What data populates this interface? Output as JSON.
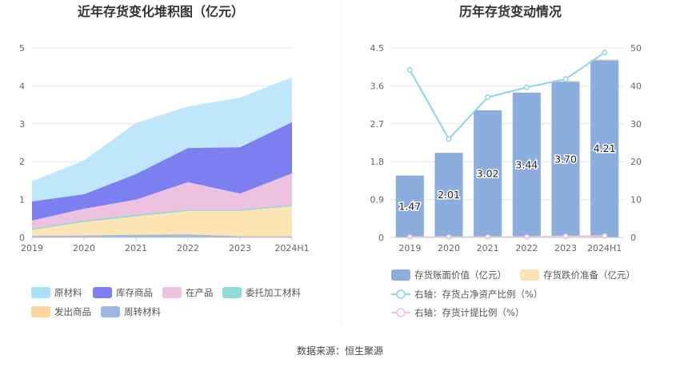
{
  "footer": {
    "source": "数据来源：恒生聚源"
  },
  "colors": {
    "原材料": "#bfe7fb",
    "库存商品": "#7b7ff0",
    "在产品": "#edc2e1",
    "委托加工材料": "#8fdada",
    "发出商品": "#fde4b4",
    "周转材料": "#9db6e4",
    "bar": "#8baede",
    "bar_top": "#fde4b4",
    "line1": "#8dd6de",
    "line2": "#f0c3dc",
    "legend_swatch_原材料": "#a8e0f9",
    "legend_swatch_发出商品": "#fcd69a"
  },
  "chart_data": [
    {
      "type": "area",
      "title": "近年存货变化堆积图（亿元）",
      "categories": [
        "2019",
        "2020",
        "2021",
        "2022",
        "2023",
        "2024H1"
      ],
      "ylim": [
        0,
        5
      ],
      "yticks": [
        0,
        1,
        2,
        3,
        4,
        5
      ],
      "stacked": true,
      "grid": true,
      "legend_position": "bottom",
      "series": [
        {
          "name": "周转材料",
          "values": [
            0.04,
            0.05,
            0.07,
            0.08,
            0.03,
            0.03
          ]
        },
        {
          "name": "发出商品",
          "values": [
            0.16,
            0.36,
            0.49,
            0.62,
            0.67,
            0.8
          ]
        },
        {
          "name": "委托加工材料",
          "values": [
            0.03,
            0.04,
            0.04,
            0.03,
            0.03,
            0.03
          ]
        },
        {
          "name": "在产品",
          "values": [
            0.22,
            0.31,
            0.4,
            0.73,
            0.43,
            0.83
          ]
        },
        {
          "name": "库存商品",
          "values": [
            0.5,
            0.38,
            0.67,
            0.9,
            1.22,
            1.35
          ]
        },
        {
          "name": "原材料",
          "values": [
            0.52,
            0.88,
            1.34,
            1.08,
            1.3,
            1.17
          ]
        }
      ],
      "legend": [
        "原材料",
        "库存商品",
        "在产品",
        "委托加工材料",
        "发出商品",
        "周转材料"
      ]
    },
    {
      "type": "bar",
      "title": "历年存货变动情况",
      "categories": [
        "2019",
        "2020",
        "2021",
        "2022",
        "2023",
        "2024H1"
      ],
      "ylim": [
        0,
        4.5
      ],
      "yticks": [
        0,
        0.9,
        1.8,
        2.7,
        3.6,
        4.5
      ],
      "y2lim": [
        0,
        50
      ],
      "y2ticks": [
        0,
        10,
        20,
        30,
        40,
        50
      ],
      "grid": true,
      "legend_position": "bottom",
      "series": [
        {
          "name": "存货账面价值（亿元）",
          "axis": "left",
          "kind": "bar",
          "values": [
            1.47,
            2.01,
            3.02,
            3.44,
            3.7,
            4.21
          ],
          "labels": [
            "1.47",
            "2.01",
            "3.02",
            "3.44",
            "3.70",
            "4.21"
          ]
        },
        {
          "name": "存货跌价准备（亿元）",
          "axis": "left",
          "kind": "bar-stack",
          "values": [
            0.0,
            0.0,
            0.0,
            0.0,
            0.01,
            0.02
          ]
        },
        {
          "name": "右轴：存货占净资产比例（%）",
          "axis": "right",
          "kind": "line",
          "values": [
            44.2,
            26.0,
            37.0,
            39.6,
            41.8,
            48.8
          ]
        },
        {
          "name": "右轴：存货计提比例（%）",
          "axis": "right",
          "kind": "line",
          "values": [
            0.1,
            0.1,
            0.1,
            0.1,
            0.3,
            0.4
          ]
        }
      ]
    }
  ]
}
